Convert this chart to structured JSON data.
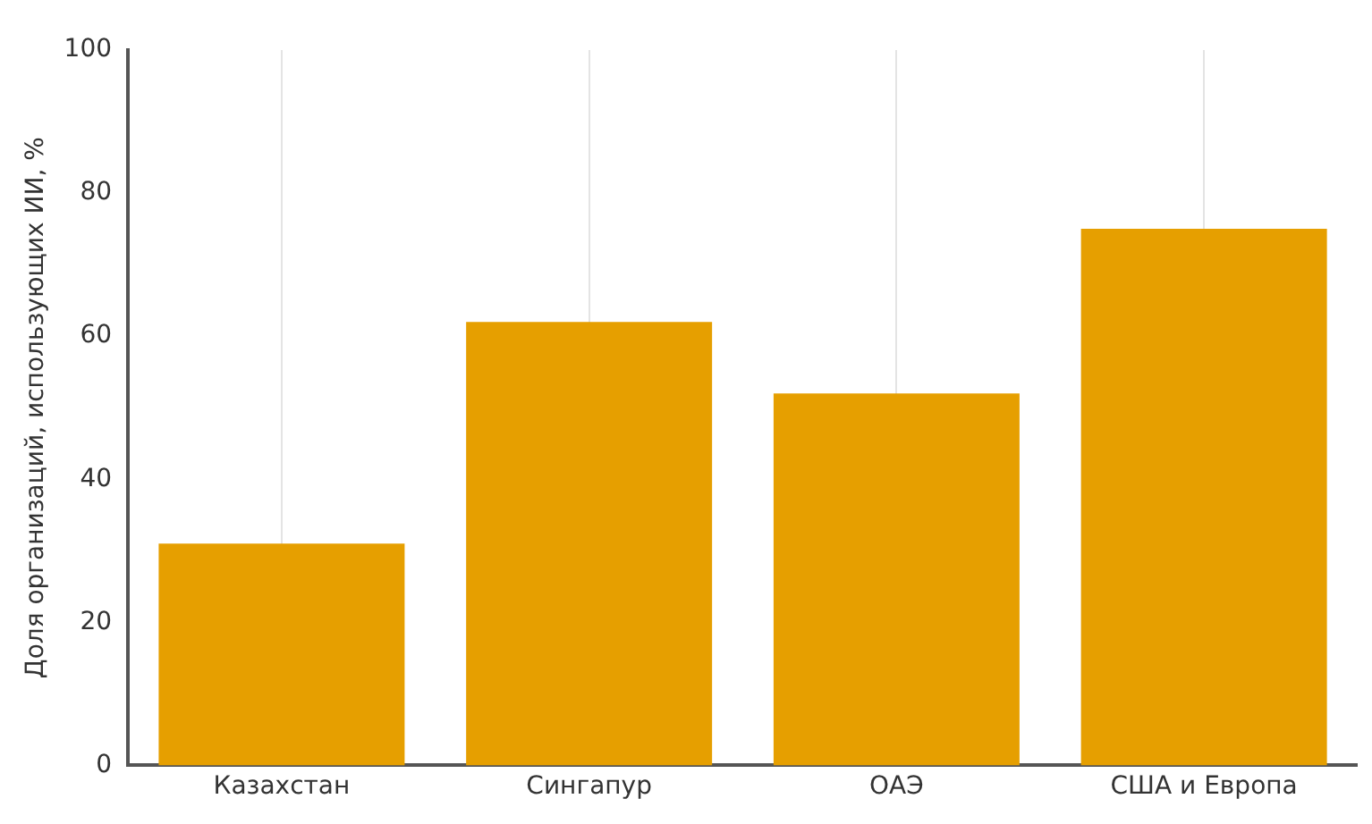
{
  "chart_data": {
    "type": "bar",
    "ylabel": "Доля организаций, использующих ИИ, %",
    "categories": [
      "Казахстан",
      "Сингапур",
      "ОАЭ",
      "США и Европа"
    ],
    "values": [
      31,
      62,
      52,
      75
    ],
    "color": "#e69f00",
    "ylim": [
      0,
      100
    ],
    "yticks": [
      0,
      20,
      40,
      60,
      80,
      100
    ],
    "grid": "x"
  }
}
